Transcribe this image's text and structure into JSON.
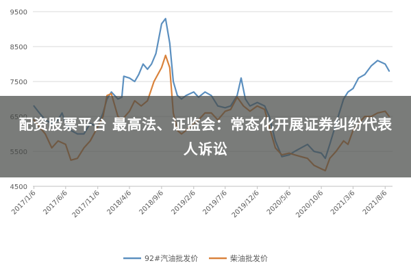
{
  "headline": "配资股票平台 最高法、证监会：常态化开展证券纠纷代表人诉讼",
  "chart_data": {
    "type": "line",
    "title": "",
    "xlabel": "",
    "ylabel": "",
    "ylim": [
      4500,
      9500
    ],
    "yticks": [
      4500,
      5500,
      6500,
      7500,
      8500,
      9500
    ],
    "xlim": [
      "2017-01-01",
      "2021-09-10"
    ],
    "xticks": [
      "2017/1/6",
      "2017/6/6",
      "2017/11/6",
      "2018/4/6",
      "2018/9/6",
      "2019/2/6",
      "2019/7/6",
      "2019/12/6",
      "2020/5/6",
      "2020/10/6",
      "2021/3/6",
      "2021/8/6"
    ],
    "grid": "horizontal",
    "legend_position": "bottom",
    "series": [
      {
        "name": "92#汽油批发价",
        "color": "#5b8fbf",
        "points": [
          [
            "2017-01-06",
            6800
          ],
          [
            "2017-02-01",
            6600
          ],
          [
            "2017-03-01",
            6400
          ],
          [
            "2017-04-01",
            6300
          ],
          [
            "2017-05-01",
            6400
          ],
          [
            "2017-05-20",
            6600
          ],
          [
            "2017-06-06",
            6300
          ],
          [
            "2017-07-01",
            6100
          ],
          [
            "2017-08-01",
            6000
          ],
          [
            "2017-09-01",
            6000
          ],
          [
            "2017-10-01",
            6300
          ],
          [
            "2017-11-06",
            6200
          ],
          [
            "2017-12-01",
            6600
          ],
          [
            "2017-12-20",
            7000
          ],
          [
            "2018-01-10",
            7200
          ],
          [
            "2018-02-10",
            7000
          ],
          [
            "2018-03-01",
            7050
          ],
          [
            "2018-03-10",
            7650
          ],
          [
            "2018-04-06",
            7600
          ],
          [
            "2018-05-01",
            7500
          ],
          [
            "2018-05-20",
            7700
          ],
          [
            "2018-06-10",
            8000
          ],
          [
            "2018-07-01",
            7850
          ],
          [
            "2018-07-20",
            8000
          ],
          [
            "2018-08-10",
            8300
          ],
          [
            "2018-09-06",
            9150
          ],
          [
            "2018-09-25",
            9300
          ],
          [
            "2018-10-15",
            8600
          ],
          [
            "2018-11-01",
            7500
          ],
          [
            "2018-11-20",
            7100
          ],
          [
            "2018-12-10",
            7000
          ],
          [
            "2019-01-01",
            7100
          ],
          [
            "2019-02-06",
            7200
          ],
          [
            "2019-03-01",
            7050
          ],
          [
            "2019-04-01",
            7200
          ],
          [
            "2019-05-01",
            7100
          ],
          [
            "2019-06-01",
            6800
          ],
          [
            "2019-07-06",
            6750
          ],
          [
            "2019-08-01",
            6800
          ],
          [
            "2019-09-01",
            7100
          ],
          [
            "2019-09-20",
            7600
          ],
          [
            "2019-10-10",
            7000
          ],
          [
            "2019-11-01",
            6800
          ],
          [
            "2019-12-06",
            6900
          ],
          [
            "2020-01-10",
            6800
          ],
          [
            "2020-02-01",
            6500
          ],
          [
            "2020-03-01",
            5800
          ],
          [
            "2020-04-01",
            5350
          ],
          [
            "2020-05-06",
            5400
          ],
          [
            "2020-06-01",
            5500
          ],
          [
            "2020-07-01",
            5600
          ],
          [
            "2020-08-01",
            5700
          ],
          [
            "2020-09-01",
            5500
          ],
          [
            "2020-10-06",
            5450
          ],
          [
            "2020-10-25",
            5300
          ],
          [
            "2020-11-15",
            5700
          ],
          [
            "2020-12-15",
            6300
          ],
          [
            "2021-01-20",
            7000
          ],
          [
            "2021-02-10",
            7200
          ],
          [
            "2021-03-06",
            7300
          ],
          [
            "2021-04-01",
            7600
          ],
          [
            "2021-05-01",
            7700
          ],
          [
            "2021-06-01",
            7950
          ],
          [
            "2021-07-01",
            8100
          ],
          [
            "2021-08-06",
            8000
          ],
          [
            "2021-08-25",
            7800
          ]
        ]
      },
      {
        "name": "柴油批发价",
        "color": "#d9823b",
        "points": [
          [
            "2017-01-06",
            6400
          ],
          [
            "2017-02-01",
            6200
          ],
          [
            "2017-03-01",
            6000
          ],
          [
            "2017-04-01",
            5600
          ],
          [
            "2017-05-01",
            5800
          ],
          [
            "2017-06-06",
            5700
          ],
          [
            "2017-07-01",
            5250
          ],
          [
            "2017-08-01",
            5300
          ],
          [
            "2017-09-01",
            5600
          ],
          [
            "2017-10-01",
            5800
          ],
          [
            "2017-11-06",
            6200
          ],
          [
            "2017-12-01",
            6500
          ],
          [
            "2017-12-20",
            7100
          ],
          [
            "2018-01-10",
            7150
          ],
          [
            "2018-02-10",
            6500
          ],
          [
            "2018-03-01",
            6400
          ],
          [
            "2018-04-06",
            6650
          ],
          [
            "2018-05-01",
            6950
          ],
          [
            "2018-06-01",
            6800
          ],
          [
            "2018-07-01",
            6950
          ],
          [
            "2018-08-01",
            7500
          ],
          [
            "2018-09-06",
            7900
          ],
          [
            "2018-09-25",
            8250
          ],
          [
            "2018-10-15",
            7900
          ],
          [
            "2018-11-01",
            6600
          ],
          [
            "2018-11-20",
            6100
          ],
          [
            "2018-12-10",
            6000
          ],
          [
            "2019-01-01",
            6100
          ],
          [
            "2019-02-06",
            6300
          ],
          [
            "2019-03-01",
            6400
          ],
          [
            "2019-04-01",
            6600
          ],
          [
            "2019-05-01",
            6600
          ],
          [
            "2019-06-01",
            6400
          ],
          [
            "2019-07-06",
            6650
          ],
          [
            "2019-08-01",
            6700
          ],
          [
            "2019-09-01",
            7050
          ],
          [
            "2019-10-01",
            6800
          ],
          [
            "2019-11-01",
            6650
          ],
          [
            "2019-12-06",
            6800
          ],
          [
            "2020-01-10",
            6700
          ],
          [
            "2020-02-01",
            6200
          ],
          [
            "2020-03-01",
            5600
          ],
          [
            "2020-04-01",
            5400
          ],
          [
            "2020-05-06",
            5450
          ],
          [
            "2020-06-01",
            5400
          ],
          [
            "2020-07-01",
            5350
          ],
          [
            "2020-08-01",
            5300
          ],
          [
            "2020-09-01",
            5100
          ],
          [
            "2020-10-06",
            5000
          ],
          [
            "2020-10-25",
            4950
          ],
          [
            "2020-11-15",
            5300
          ],
          [
            "2020-12-15",
            5500
          ],
          [
            "2021-01-20",
            5800
          ],
          [
            "2021-02-10",
            5700
          ],
          [
            "2021-03-06",
            6100
          ],
          [
            "2021-04-01",
            6300
          ],
          [
            "2021-05-01",
            6500
          ],
          [
            "2021-06-01",
            6500
          ],
          [
            "2021-07-01",
            6600
          ],
          [
            "2021-08-06",
            6650
          ],
          [
            "2021-08-25",
            6500
          ]
        ]
      }
    ]
  }
}
